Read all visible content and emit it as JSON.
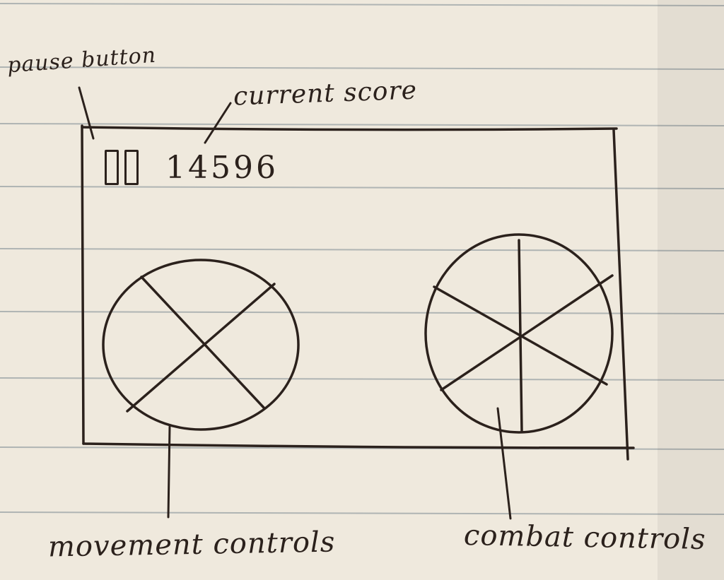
{
  "annotations": {
    "pause_button": "pause button",
    "current_score": "current score",
    "movement_controls": "movement controls",
    "combat_controls": "combat controls"
  },
  "hud": {
    "score": "14596"
  },
  "colors": {
    "paper": "#efe9dd",
    "ruled_line": "#9aa3a6",
    "ink": "#2b211c"
  },
  "icons": {
    "pause": "pause-icon",
    "movement_joystick": "movement-joystick-icon",
    "combat_wheel": "combat-wheel-icon"
  }
}
